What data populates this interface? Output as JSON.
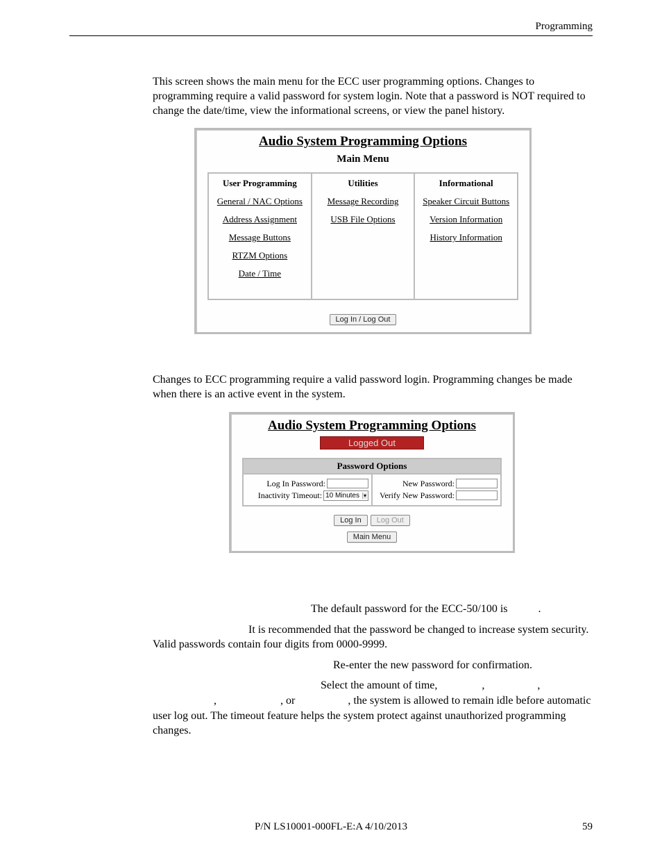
{
  "header": {
    "right": "Programming"
  },
  "intro": "This screen shows the main menu for the ECC user programming options.  Changes to programming require a valid password for system login.  Note that a password is NOT required to change the date/time, view the informational screens, or view the panel history.",
  "panel1": {
    "title": "Audio System Programming Options",
    "subtitle": "Main Menu",
    "cols": [
      {
        "head": "User Programming",
        "items": [
          "General / NAC Options",
          "Address Assignment",
          "Message Buttons",
          "RTZM Options",
          "Date / Time"
        ]
      },
      {
        "head": "Utilities",
        "items": [
          "Message Recording",
          "USB File Options"
        ]
      },
      {
        "head": "Informational",
        "items": [
          "Speaker Circuit Buttons",
          "Version Information",
          "History Information"
        ]
      }
    ],
    "login_btn": "Log In / Log Out"
  },
  "mid_text_a": "Changes to ECC programming require a valid password login.  Programming changes ",
  "mid_text_b": " be made when there is an active event in the system.",
  "panel2": {
    "title": "Audio System Programming Options",
    "status": "Logged Out",
    "pw_head": "Password Options",
    "left": {
      "login_label": "Log In Password:",
      "timeout_label": "Inactivity Timeout:",
      "timeout_value": "10 Minutes"
    },
    "right": {
      "new_label": "New Password:",
      "verify_label": "Verify New Password:"
    },
    "btns": {
      "login": "Log In",
      "logout": "Log Out",
      "main": "Main Menu"
    }
  },
  "footnotes": {
    "f1": "The default password for the ECC-50/100 is ",
    "f1_end": ".",
    "f2_a": "It is recommended that the password be changed to increase system security.  Valid passwords contain four digits from 0000-9999.",
    "f3": "Re-enter the new password for confirmation.",
    "f4_a": "Select the amount of time, ",
    "f4_gaps": [
      ", ",
      ", ",
      ", ",
      ", or "
    ],
    "f4_b": ", the system is allowed to remain idle before automatic user log out.  The timeout feature helps the system protect against unauthorized programming changes."
  },
  "footer": {
    "text": "P/N LS10001-000FL-E:A  4/10/2013",
    "page": "59"
  },
  "colors": {
    "border": "#bcbcbc",
    "status_bg": "#b22222",
    "status_fg": "#dcdcdc",
    "table_head_bg": "#cccccc"
  }
}
